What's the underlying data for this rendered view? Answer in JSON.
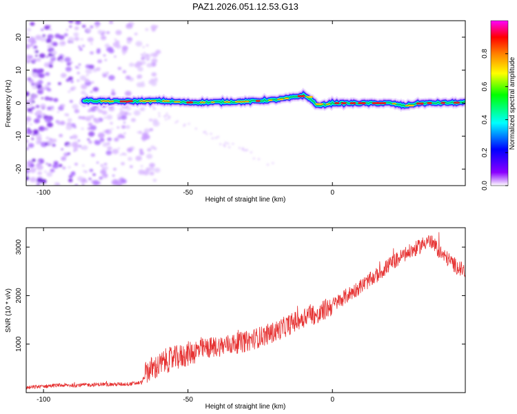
{
  "title": "PAZ1.2026.051.12.53.G13",
  "chart_data": [
    {
      "type": "heatmap",
      "name": "spectrogram",
      "xlabel": "Height of straight line (km)",
      "ylabel": "Frequency (Hz)",
      "xlim": [
        -106,
        46
      ],
      "ylim": [
        -25,
        25
      ],
      "xticks": [
        -100,
        -50,
        0
      ],
      "yticks": [
        -20,
        -10,
        0,
        10,
        20
      ],
      "colorbar": {
        "label": "Normalized spectral amplitude",
        "range": [
          0,
          1
        ],
        "ticks": [
          "0.0",
          "0.2",
          "0.4",
          "0.6",
          "0.8"
        ],
        "tick_values": [
          0.0,
          0.2,
          0.4,
          0.6,
          0.8
        ],
        "colors": [
          "#ffffff",
          "#8a00ff",
          "#0000ff",
          "#00ffff",
          "#00ff00",
          "#ffff00",
          "#ff8000",
          "#ff0000",
          "#ff00ff"
        ]
      },
      "ridge": {
        "x": [
          -86,
          -75,
          -70,
          -60,
          -50,
          -40,
          -30,
          -20,
          -15,
          -10,
          -8,
          -5,
          0,
          10,
          20,
          25,
          30,
          40,
          46
        ],
        "y": [
          0.8,
          0.5,
          0.6,
          0.7,
          0.2,
          0.3,
          0.5,
          1.0,
          1.6,
          2.4,
          1.5,
          -0.8,
          0.0,
          0.0,
          0.0,
          -0.8,
          0.0,
          0.1,
          0.2
        ]
      },
      "noise_region_x": [
        -106,
        -60
      ]
    },
    {
      "type": "line",
      "name": "snr",
      "xlabel": "Height of straight line (km)",
      "ylabel": "SNR (10 * v/v)",
      "xlim": [
        -106,
        46
      ],
      "ylim": [
        0,
        3400
      ],
      "xticks": [
        -100,
        -50,
        0
      ],
      "yticks": [
        1000,
        2000,
        3000
      ],
      "color": "#e63232",
      "x": [
        -106,
        -100,
        -95,
        -90,
        -85,
        -80,
        -75,
        -70,
        -66,
        -64,
        -62,
        -60,
        -58,
        -55,
        -52,
        -50,
        -45,
        -40,
        -35,
        -30,
        -25,
        -20,
        -15,
        -10,
        -8,
        -6,
        -5,
        -3,
        0,
        5,
        10,
        15,
        20,
        25,
        30,
        33,
        35,
        38,
        40,
        43,
        46
      ],
      "y": [
        100,
        130,
        150,
        150,
        160,
        170,
        170,
        180,
        210,
        450,
        500,
        550,
        650,
        700,
        750,
        800,
        900,
        950,
        1000,
        1050,
        1150,
        1250,
        1400,
        1550,
        1650,
        1600,
        1550,
        1700,
        1800,
        2000,
        2200,
        2400,
        2650,
        2850,
        3000,
        3150,
        3050,
        2850,
        2750,
        2600,
        2500
      ]
    }
  ]
}
